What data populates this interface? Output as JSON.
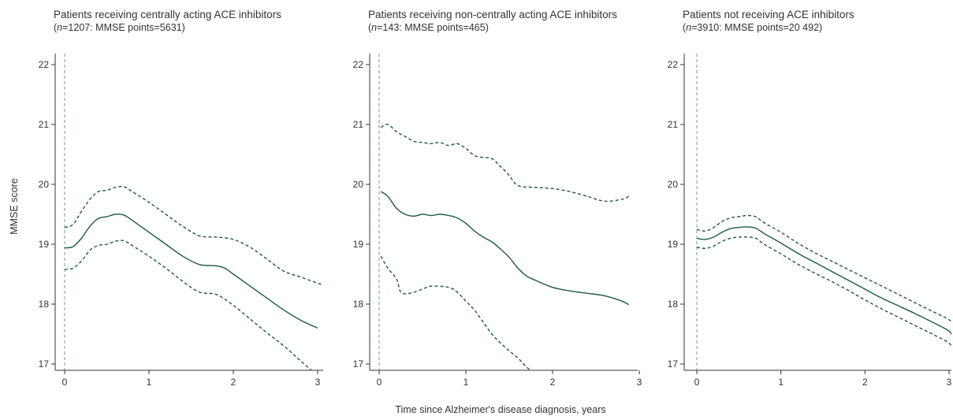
{
  "chart_data": [
    {
      "type": "line",
      "title": "Patients receiving centrally acting ACE inhibitors",
      "subtitle": {
        "n_label": "n",
        "text": "=1207: MMSE points=5631"
      },
      "ylabel": "MMSE score",
      "xlabel": "",
      "xlim": [
        -0.12,
        3.05
      ],
      "ylim": [
        16.88,
        22.3
      ],
      "x_ticks": [
        0,
        1,
        2,
        3
      ],
      "y_ticks": [
        17,
        18,
        19,
        20,
        21,
        22
      ],
      "grid": false,
      "reference_line_x": 0,
      "series": [
        {
          "role": "estimate",
          "style": "solid",
          "points": [
            [
              0,
              18.94
            ],
            [
              0.1,
              18.96
            ],
            [
              0.2,
              19.1
            ],
            [
              0.3,
              19.3
            ],
            [
              0.4,
              19.43
            ],
            [
              0.5,
              19.46
            ],
            [
              0.6,
              19.5
            ],
            [
              0.7,
              19.49
            ],
            [
              0.8,
              19.4
            ],
            [
              0.9,
              19.3
            ],
            [
              1.0,
              19.2
            ],
            [
              1.2,
              19.0
            ],
            [
              1.4,
              18.8
            ],
            [
              1.6,
              18.66
            ],
            [
              1.8,
              18.64
            ],
            [
              1.9,
              18.6
            ],
            [
              2.0,
              18.5
            ],
            [
              2.2,
              18.3
            ],
            [
              2.4,
              18.1
            ],
            [
              2.6,
              17.9
            ],
            [
              2.8,
              17.73
            ],
            [
              3.0,
              17.6
            ]
          ]
        },
        {
          "role": "upper_ci",
          "style": "dashed",
          "points": [
            [
              0,
              19.28
            ],
            [
              0.1,
              19.33
            ],
            [
              0.2,
              19.55
            ],
            [
              0.3,
              19.75
            ],
            [
              0.4,
              19.88
            ],
            [
              0.5,
              19.9
            ],
            [
              0.6,
              19.95
            ],
            [
              0.7,
              19.96
            ],
            [
              0.8,
              19.88
            ],
            [
              1.0,
              19.7
            ],
            [
              1.2,
              19.5
            ],
            [
              1.4,
              19.3
            ],
            [
              1.6,
              19.14
            ],
            [
              1.8,
              19.12
            ],
            [
              2.0,
              19.08
            ],
            [
              2.2,
              18.95
            ],
            [
              2.4,
              18.75
            ],
            [
              2.6,
              18.55
            ],
            [
              2.8,
              18.45
            ],
            [
              3.0,
              18.35
            ],
            [
              3.05,
              18.32
            ]
          ]
        },
        {
          "role": "lower_ci",
          "style": "dashed",
          "points": [
            [
              0,
              18.58
            ],
            [
              0.1,
              18.6
            ],
            [
              0.2,
              18.72
            ],
            [
              0.3,
              18.9
            ],
            [
              0.4,
              18.98
            ],
            [
              0.5,
              19.0
            ],
            [
              0.6,
              19.05
            ],
            [
              0.7,
              19.06
            ],
            [
              0.8,
              18.98
            ],
            [
              1.0,
              18.8
            ],
            [
              1.2,
              18.6
            ],
            [
              1.4,
              18.38
            ],
            [
              1.6,
              18.2
            ],
            [
              1.8,
              18.16
            ],
            [
              2.0,
              17.98
            ],
            [
              2.2,
              17.75
            ],
            [
              2.4,
              17.52
            ],
            [
              2.6,
              17.3
            ],
            [
              2.8,
              17.05
            ],
            [
              3.0,
              16.8
            ]
          ]
        }
      ]
    },
    {
      "type": "line",
      "title": "Patients receiving non-centrally acting ACE inhibitors",
      "subtitle": {
        "n_label": "n",
        "text": "=143: MMSE points=465"
      },
      "ylabel": "",
      "xlabel": "Time since Alzheimer's disease diagnosis, years",
      "xlim": [
        -0.1,
        3.05
      ],
      "ylim": [
        16.88,
        22.3
      ],
      "x_ticks": [
        0,
        1,
        2,
        3
      ],
      "y_ticks": [
        17,
        18,
        19,
        20,
        21,
        22
      ],
      "grid": false,
      "reference_line_x": 0,
      "series": [
        {
          "role": "estimate",
          "style": "solid",
          "points": [
            [
              0.02,
              19.88
            ],
            [
              0.1,
              19.8
            ],
            [
              0.2,
              19.6
            ],
            [
              0.3,
              19.5
            ],
            [
              0.4,
              19.47
            ],
            [
              0.5,
              19.5
            ],
            [
              0.6,
              19.48
            ],
            [
              0.7,
              19.5
            ],
            [
              0.8,
              19.48
            ],
            [
              0.9,
              19.44
            ],
            [
              1.0,
              19.35
            ],
            [
              1.1,
              19.22
            ],
            [
              1.2,
              19.12
            ],
            [
              1.3,
              19.04
            ],
            [
              1.4,
              18.92
            ],
            [
              1.5,
              18.78
            ],
            [
              1.6,
              18.6
            ],
            [
              1.7,
              18.47
            ],
            [
              1.8,
              18.4
            ],
            [
              2.0,
              18.28
            ],
            [
              2.2,
              18.22
            ],
            [
              2.4,
              18.18
            ],
            [
              2.6,
              18.14
            ],
            [
              2.8,
              18.05
            ],
            [
              2.88,
              17.99
            ]
          ]
        },
        {
          "role": "upper_ci",
          "style": "dashed",
          "points": [
            [
              0.02,
              20.95
            ],
            [
              0.1,
              21.0
            ],
            [
              0.2,
              20.88
            ],
            [
              0.3,
              20.8
            ],
            [
              0.4,
              20.72
            ],
            [
              0.5,
              20.7
            ],
            [
              0.6,
              20.68
            ],
            [
              0.7,
              20.7
            ],
            [
              0.8,
              20.65
            ],
            [
              0.9,
              20.68
            ],
            [
              1.0,
              20.6
            ],
            [
              1.1,
              20.48
            ],
            [
              1.2,
              20.45
            ],
            [
              1.3,
              20.43
            ],
            [
              1.4,
              20.3
            ],
            [
              1.5,
              20.15
            ],
            [
              1.6,
              19.98
            ],
            [
              1.8,
              19.95
            ],
            [
              2.0,
              19.93
            ],
            [
              2.2,
              19.88
            ],
            [
              2.4,
              19.8
            ],
            [
              2.6,
              19.72
            ],
            [
              2.8,
              19.75
            ],
            [
              2.88,
              19.8
            ]
          ]
        },
        {
          "role": "lower_ci",
          "style": "dashed",
          "points": [
            [
              0.02,
              18.8
            ],
            [
              0.1,
              18.6
            ],
            [
              0.2,
              18.42
            ],
            [
              0.25,
              18.2
            ],
            [
              0.35,
              18.18
            ],
            [
              0.5,
              18.25
            ],
            [
              0.6,
              18.3
            ],
            [
              0.8,
              18.28
            ],
            [
              0.9,
              18.2
            ],
            [
              1.0,
              18.05
            ],
            [
              1.1,
              17.9
            ],
            [
              1.2,
              17.7
            ],
            [
              1.3,
              17.5
            ],
            [
              1.4,
              17.35
            ],
            [
              1.5,
              17.22
            ],
            [
              1.6,
              17.1
            ],
            [
              1.7,
              16.95
            ],
            [
              1.8,
              16.82
            ]
          ]
        }
      ]
    },
    {
      "type": "line",
      "title": "Patients not receiving ACE inhibitors",
      "subtitle": {
        "n_label": "n",
        "text": "=3910: MMSE points=20 492"
      },
      "ylabel": "",
      "xlabel": "",
      "xlim": [
        -0.1,
        3.05
      ],
      "ylim": [
        16.88,
        22.3
      ],
      "x_ticks": [
        0,
        1,
        2,
        3
      ],
      "y_ticks": [
        17,
        18,
        19,
        20,
        21,
        22
      ],
      "grid": false,
      "reference_line_x": 0,
      "series": [
        {
          "role": "estimate",
          "style": "solid",
          "points": [
            [
              0,
              19.1
            ],
            [
              0.1,
              19.08
            ],
            [
              0.2,
              19.12
            ],
            [
              0.3,
              19.2
            ],
            [
              0.4,
              19.26
            ],
            [
              0.5,
              19.28
            ],
            [
              0.6,
              19.29
            ],
            [
              0.7,
              19.27
            ],
            [
              0.8,
              19.18
            ],
            [
              1.0,
              19.02
            ],
            [
              1.2,
              18.85
            ],
            [
              1.4,
              18.7
            ],
            [
              1.6,
              18.55
            ],
            [
              1.8,
              18.4
            ],
            [
              2.0,
              18.25
            ],
            [
              2.2,
              18.1
            ],
            [
              2.4,
              17.97
            ],
            [
              2.6,
              17.84
            ],
            [
              2.8,
              17.7
            ],
            [
              3.0,
              17.55
            ],
            [
              3.05,
              17.42
            ]
          ]
        },
        {
          "role": "upper_ci",
          "style": "dashed",
          "points": [
            [
              0,
              19.25
            ],
            [
              0.1,
              19.22
            ],
            [
              0.2,
              19.28
            ],
            [
              0.3,
              19.38
            ],
            [
              0.4,
              19.44
            ],
            [
              0.5,
              19.46
            ],
            [
              0.6,
              19.48
            ],
            [
              0.7,
              19.46
            ],
            [
              0.8,
              19.36
            ],
            [
              1.0,
              19.2
            ],
            [
              1.2,
              19.02
            ],
            [
              1.4,
              18.86
            ],
            [
              1.6,
              18.72
            ],
            [
              1.8,
              18.58
            ],
            [
              2.0,
              18.44
            ],
            [
              2.2,
              18.3
            ],
            [
              2.4,
              18.16
            ],
            [
              2.6,
              18.02
            ],
            [
              2.8,
              17.88
            ],
            [
              3.0,
              17.74
            ],
            [
              3.05,
              17.64
            ]
          ]
        },
        {
          "role": "lower_ci",
          "style": "dashed",
          "points": [
            [
              0,
              18.95
            ],
            [
              0.1,
              18.93
            ],
            [
              0.2,
              18.97
            ],
            [
              0.3,
              19.05
            ],
            [
              0.4,
              19.1
            ],
            [
              0.5,
              19.12
            ],
            [
              0.6,
              19.12
            ],
            [
              0.7,
              19.1
            ],
            [
              0.8,
              19.0
            ],
            [
              1.0,
              18.84
            ],
            [
              1.2,
              18.67
            ],
            [
              1.4,
              18.52
            ],
            [
              1.6,
              18.38
            ],
            [
              1.8,
              18.23
            ],
            [
              2.0,
              18.07
            ],
            [
              2.2,
              17.92
            ],
            [
              2.4,
              17.78
            ],
            [
              2.6,
              17.64
            ],
            [
              2.8,
              17.5
            ],
            [
              3.0,
              17.35
            ],
            [
              3.05,
              17.22
            ]
          ]
        }
      ]
    }
  ],
  "colors": {
    "line": "#1a5a45",
    "reference_line": "#6aa099",
    "axis": "#333333",
    "text": "#333333"
  }
}
